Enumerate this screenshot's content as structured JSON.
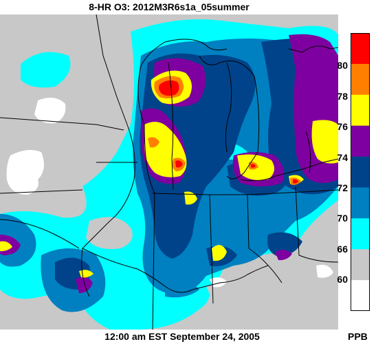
{
  "title": "8-HR O3: 2012M3R6s1a_05summer",
  "timestamp": "12:00 am EST September 24, 2005",
  "units": "PPB",
  "legend": {
    "ticks": [
      "80",
      "78",
      "76",
      "74",
      "72",
      "70",
      "66",
      "60"
    ],
    "bins": [
      {
        "range": "80+",
        "color": "#ff0000"
      },
      {
        "range": "78-80",
        "color": "#ff7f00"
      },
      {
        "range": "76-78",
        "color": "#ffff00"
      },
      {
        "range": "74-76",
        "color": "#7f00a0"
      },
      {
        "range": "72-74",
        "color": "#00438a"
      },
      {
        "range": "70-72",
        "color": "#0080c0"
      },
      {
        "range": "66-70",
        "color": "#00ffff"
      },
      {
        "range": "60-66",
        "color": "#c8c8c8"
      },
      {
        "range": "<60",
        "color": "#ffffff"
      }
    ]
  }
}
